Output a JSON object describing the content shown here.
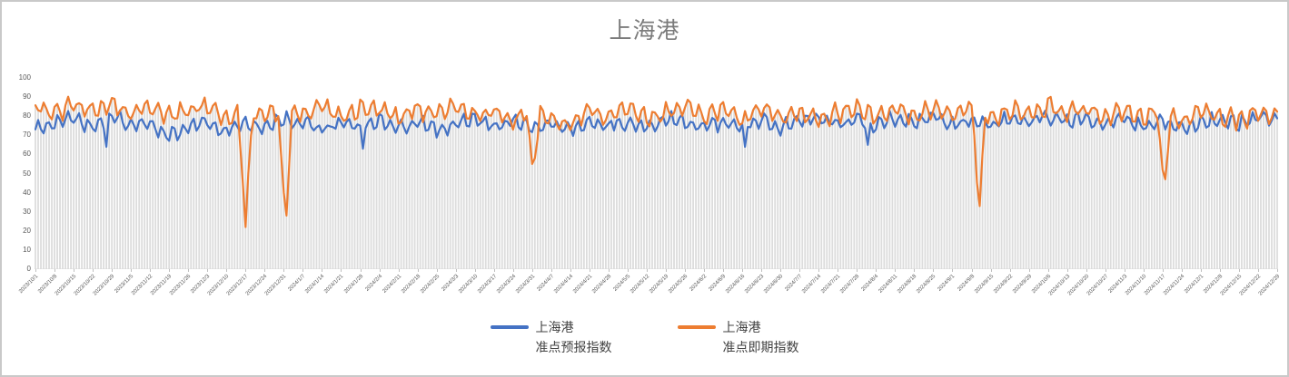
{
  "title": "上海港",
  "legend": {
    "items": [
      {
        "line1": "上海港",
        "line2": "准点预报指数",
        "color": "#4472C4"
      },
      {
        "line1": "上海港",
        "line2": "准点即期指数",
        "color": "#ED7D31"
      }
    ]
  },
  "chart_data": {
    "type": "line",
    "title": "上海港",
    "xlabel": "",
    "ylabel": "",
    "ylim": [
      0,
      100
    ],
    "y_ticks": [
      0,
      10,
      20,
      30,
      40,
      50,
      60,
      70,
      80,
      90,
      100
    ],
    "grid": "vertical-droplines-per-day",
    "dropline_color": "#dcdcdc",
    "axis_line_color": "#d9d9d9",
    "tick_color": "#bfbfbf",
    "legend_position": "bottom",
    "points_per_week": 7,
    "x_tick_labels": [
      "2023/10/1",
      "2023/10/8",
      "2023/10/15",
      "2023/10/22",
      "2023/10/29",
      "2023/11/5",
      "2023/11/12",
      "2023/11/19",
      "2023/11/26",
      "2023/12/3",
      "2023/12/10",
      "2023/12/17",
      "2023/12/24",
      "2023/12/31",
      "2024/1/7",
      "2024/1/14",
      "2024/1/21",
      "2024/1/28",
      "2024/2/4",
      "2024/2/11",
      "2024/2/18",
      "2024/2/25",
      "2024/3/3",
      "2024/3/10",
      "2024/3/17",
      "2024/3/24",
      "2024/3/31",
      "2024/4/7",
      "2024/4/14",
      "2024/4/21",
      "2024/4/28",
      "2024/5/5",
      "2024/5/12",
      "2024/5/19",
      "2024/5/26",
      "2024/6/2",
      "2024/6/9",
      "2024/6/16",
      "2024/6/23",
      "2024/6/30",
      "2024/7/7",
      "2024/7/14",
      "2024/7/21",
      "2024/7/28",
      "2024/8/4",
      "2024/8/11",
      "2024/8/18",
      "2024/8/25",
      "2024/9/1",
      "2024/9/8",
      "2024/9/15",
      "2024/9/22",
      "2024/9/29",
      "2024/10/6",
      "2024/10/13",
      "2024/10/20",
      "2024/10/27",
      "2024/11/3",
      "2024/11/10",
      "2024/11/17",
      "2024/11/24",
      "2024/12/1",
      "2024/12/8",
      "2024/12/15",
      "2024/12/22",
      "2024/12/29"
    ],
    "series": [
      {
        "name": "上海港 准点预报指数",
        "color": "#4472C4",
        "range": [
          61,
          88
        ],
        "wave": {
          "amp": 4.2,
          "freq": 1.65,
          "phase": 0.4,
          "seed": 7.31
        },
        "weekly_values": [
          73,
          76,
          79,
          74,
          80,
          76,
          75,
          70,
          74,
          77,
          72,
          76,
          74,
          78,
          76,
          73,
          77,
          74,
          78,
          74,
          77,
          73,
          76,
          79,
          74,
          77,
          75,
          76,
          73,
          78,
          75,
          77,
          74,
          79,
          76,
          74,
          77,
          75,
          78,
          74,
          77,
          80,
          76,
          78,
          75,
          79,
          77,
          80,
          76,
          78,
          75,
          79,
          77,
          80,
          77,
          79,
          76,
          78,
          75,
          78,
          73,
          76,
          78,
          76,
          79,
          78
        ],
        "overrides": {
          "26": 64,
          "120": 63,
          "260": 64,
          "305": 65
        }
      },
      {
        "name": "上海港 准点即期指数",
        "color": "#ED7D31",
        "range": [
          56,
          91
        ],
        "wave": {
          "amp": 5.4,
          "freq": 1.52,
          "phase": 2.3,
          "seed": 3.77
        },
        "weekly_values": [
          84,
          82,
          85,
          83,
          86,
          82,
          84,
          80,
          83,
          85,
          78,
          82,
          79,
          83,
          82,
          85,
          80,
          84,
          83,
          79,
          84,
          81,
          85,
          80,
          83,
          78,
          82,
          79,
          75,
          83,
          80,
          84,
          78,
          82,
          85,
          80,
          83,
          78,
          84,
          79,
          83,
          77,
          82,
          84,
          79,
          84,
          80,
          85,
          82,
          84,
          79,
          83,
          81,
          85,
          82,
          84,
          80,
          83,
          79,
          83,
          77,
          82,
          80,
          78,
          82,
          80
        ],
        "overrides": {
          "75": 65,
          "76": 45,
          "77": 22,
          "78": 50,
          "79": 70,
          "90": 60,
          "91": 40,
          "92": 28,
          "93": 55,
          "181": 70,
          "182": 55,
          "183": 58,
          "184": 68,
          "344": 70,
          "345": 45,
          "346": 33,
          "347": 60,
          "412": 68,
          "413": 52,
          "414": 47,
          "415": 62
        }
      }
    ]
  }
}
